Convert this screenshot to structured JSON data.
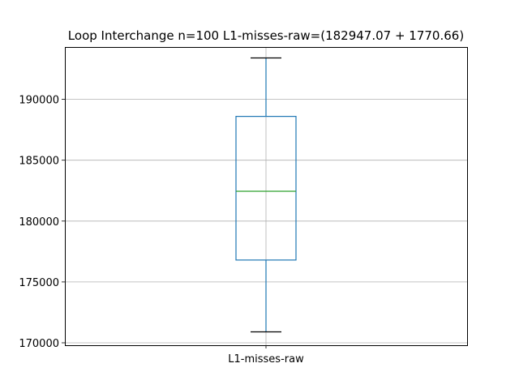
{
  "chart_data": {
    "type": "box",
    "title": "Loop Interchange n=100  L1-misses-raw=(182947.07 + 1770.66)",
    "xlabel": "",
    "ylabel": "",
    "categories": [
      "L1-misses-raw"
    ],
    "ylim": [
      169800,
      194300
    ],
    "yticks": [
      170000,
      175000,
      180000,
      185000,
      190000
    ],
    "ytick_labels": [
      "170000",
      "175000",
      "180000",
      "185000",
      "190000"
    ],
    "grid": true,
    "box": {
      "whisker_low": 170900,
      "q1": 176800,
      "median": 182450,
      "q3": 188600,
      "whisker_high": 193400
    },
    "colors": {
      "box": "#1f77b4",
      "median": "#2ca02c",
      "whisker": "#1f77b4",
      "cap": "#000000",
      "grid": "#b0b0b0"
    }
  }
}
